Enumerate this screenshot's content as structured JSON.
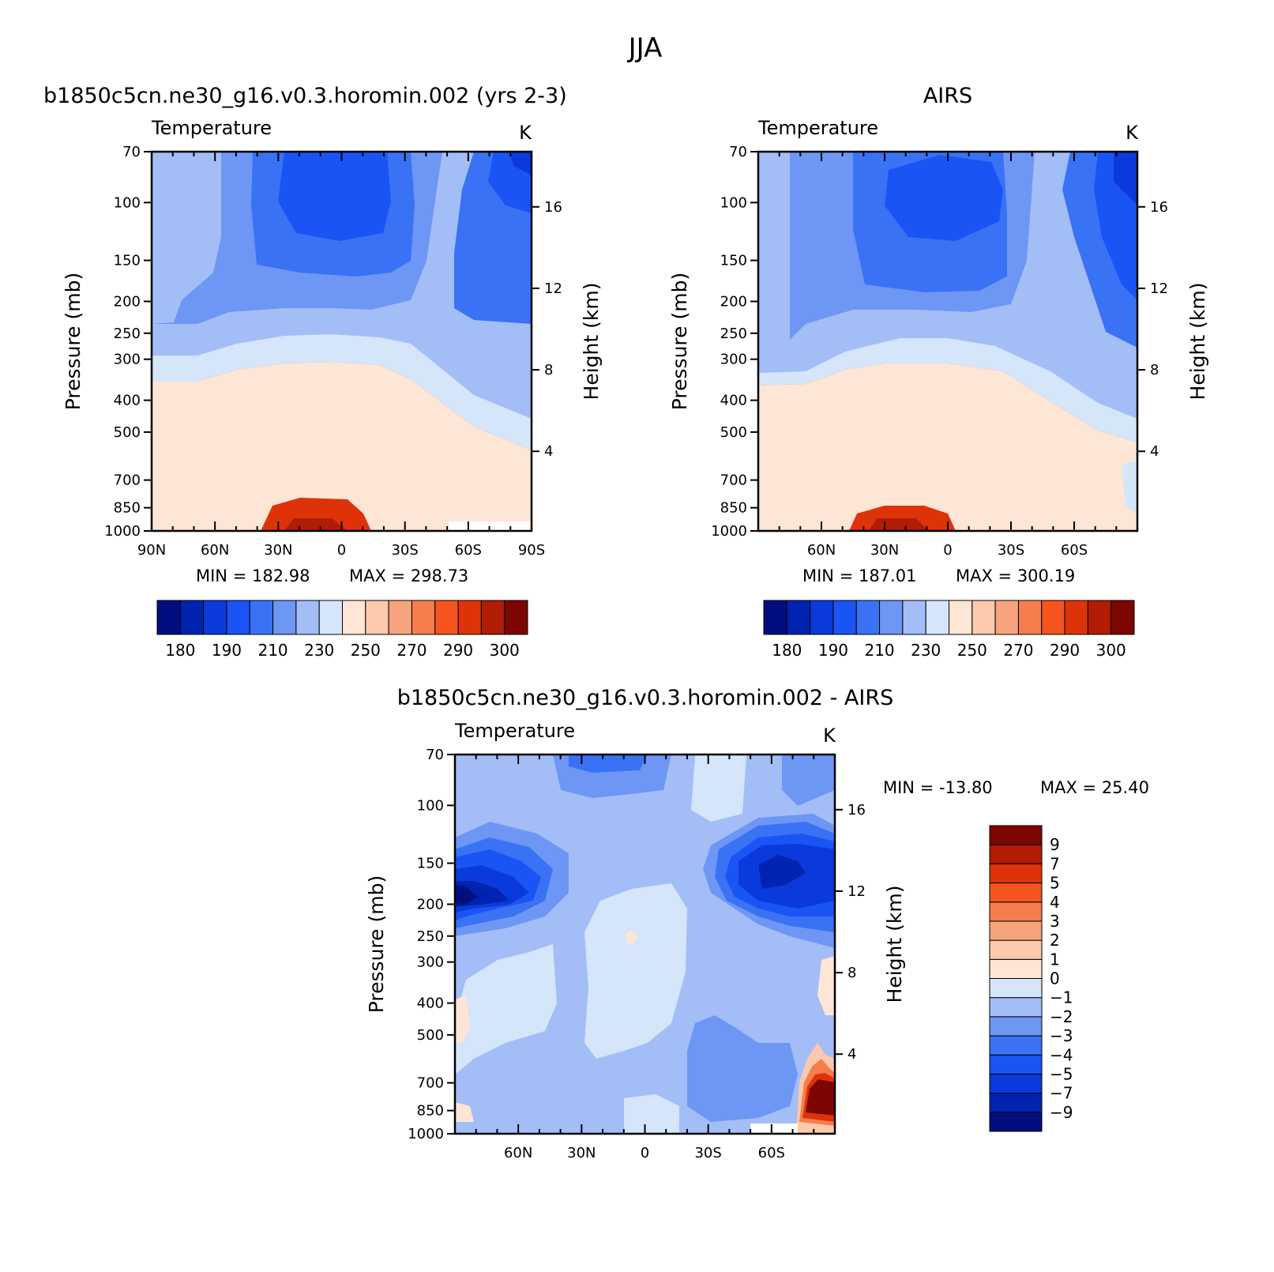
{
  "figure": {
    "title": "JJA"
  },
  "palette": [
    "#000e80",
    "#0024b0",
    "#0a3adb",
    "#1a54f5",
    "#3a72f5",
    "#6e96f5",
    "#a3bdf7",
    "#d5e5fa",
    "#fde6d6",
    "#fbc9ac",
    "#f7a47e",
    "#f57d4e",
    "#f5541f",
    "#de3309",
    "#b01c04",
    "#7d0603"
  ],
  "chart_data": [
    {
      "type": "heatmap",
      "title": "b1850c5cn.ne30_g16.v0.3.horomin.002 (yrs 2-3)",
      "variable": "Temperature",
      "units": "K",
      "xlabel": "",
      "ylabel": "Pressure (mb)",
      "y2label": "Height (km)",
      "x_ticks": [
        "90N",
        "60N",
        "30N",
        "0",
        "30S",
        "60S",
        "90S"
      ],
      "y_ticks": [
        "70",
        "100",
        "150",
        "200",
        "250",
        "300",
        "400",
        "500",
        "700",
        "850",
        "1000"
      ],
      "y2_ticks": [
        "16",
        "12",
        "8",
        "4"
      ],
      "min_label": "MIN = 182.98",
      "max_label": "MAX = 298.73",
      "min": 182.98,
      "max": 298.73,
      "colorbar_labels": [
        "180",
        "190",
        "210",
        "230",
        "250",
        "270",
        "290",
        "300"
      ]
    },
    {
      "type": "heatmap",
      "title": "AIRS",
      "variable": "Temperature",
      "units": "K",
      "xlabel": "",
      "ylabel": "Pressure (mb)",
      "y2label": "Height (km)",
      "x_ticks": [
        "60N",
        "30N",
        "0",
        "30S",
        "60S"
      ],
      "y_ticks": [
        "70",
        "100",
        "150",
        "200",
        "250",
        "300",
        "400",
        "500",
        "700",
        "850",
        "1000"
      ],
      "y2_ticks": [
        "16",
        "12",
        "8",
        "4"
      ],
      "min_label": "MIN = 187.01",
      "max_label": "MAX = 300.19",
      "min": 187.01,
      "max": 300.19,
      "colorbar_labels": [
        "180",
        "190",
        "210",
        "230",
        "250",
        "270",
        "290",
        "300"
      ]
    },
    {
      "type": "heatmap",
      "title": "b1850c5cn.ne30_g16.v0.3.horomin.002 - AIRS",
      "variable": "Temperature",
      "units": "K",
      "xlabel": "",
      "ylabel": "Pressure (mb)",
      "y2label": "Height (km)",
      "x_ticks": [
        "60N",
        "30N",
        "0",
        "30S",
        "60S"
      ],
      "y_ticks": [
        "70",
        "100",
        "150",
        "200",
        "250",
        "300",
        "400",
        "500",
        "700",
        "850",
        "1000"
      ],
      "y2_ticks": [
        "16",
        "12",
        "8",
        "4"
      ],
      "min_label": "MIN = -13.80",
      "max_label": "MAX = 25.40",
      "min": -13.8,
      "max": 25.4,
      "colorbar_labels": [
        "9",
        "7",
        "5",
        "4",
        "3",
        "2",
        "1",
        "0",
        "-1",
        "-2",
        "-3",
        "-4",
        "-5",
        "-7",
        "-9"
      ]
    }
  ]
}
